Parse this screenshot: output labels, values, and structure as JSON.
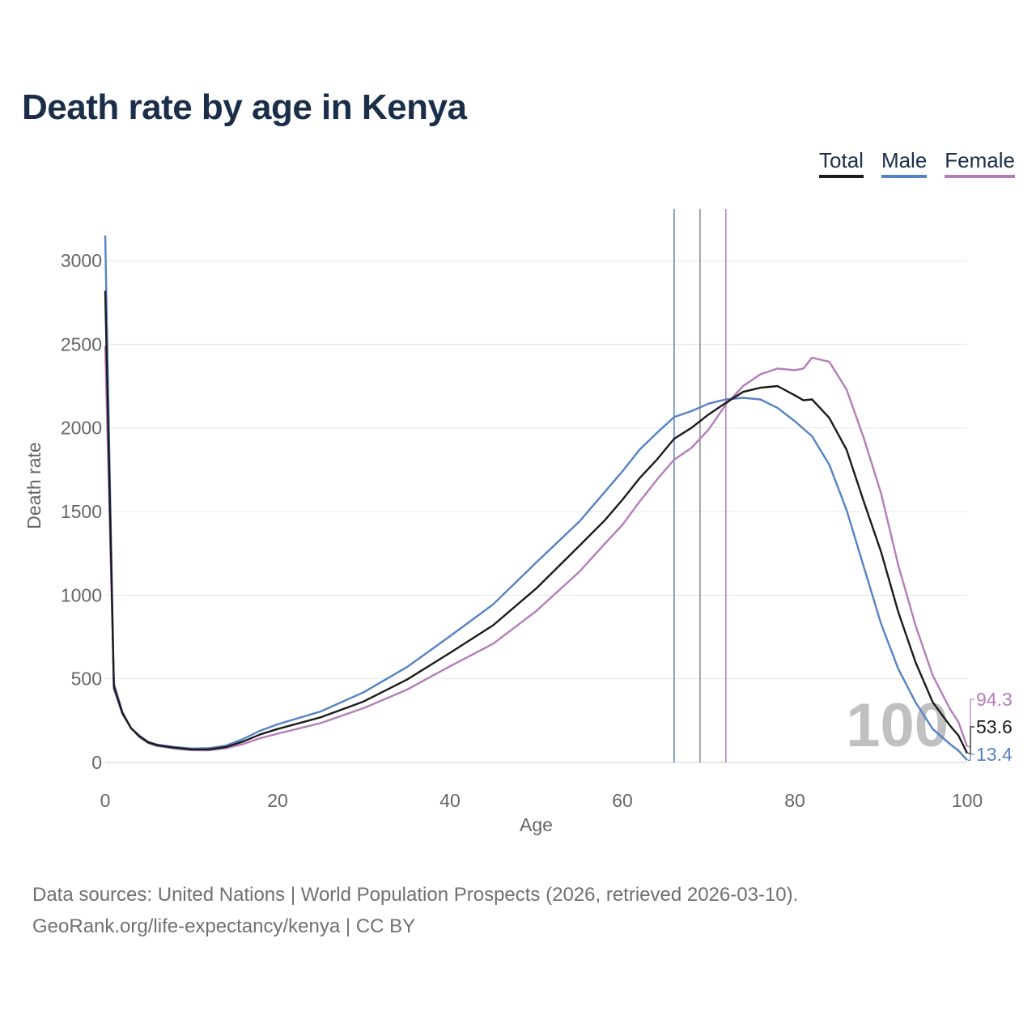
{
  "title": "Death rate by age in Kenya",
  "legend": {
    "total": "Total",
    "male": "Male",
    "female": "Female"
  },
  "colors": {
    "total": "#1b1b1b",
    "male": "#5582c4",
    "female": "#b57cba",
    "title": "#1a2e4a",
    "watermark": "#c0c0c0"
  },
  "footer": {
    "line1": "Data sources: United Nations | World Population Prospects (2026, retrieved 2026-03-10).",
    "line2": "GeoRank.org/life-expectancy/kenya | CC BY"
  },
  "chart_data": {
    "type": "line",
    "title": "Death rate by age in Kenya",
    "xlabel": "Age",
    "ylabel": "Death rate",
    "xlim": [
      0,
      100
    ],
    "ylim": [
      0,
      3300
    ],
    "x_ticks": [
      0,
      20,
      40,
      60,
      80,
      100
    ],
    "y_ticks": [
      0,
      500,
      1000,
      1500,
      2000,
      2500,
      3000
    ],
    "grid": true,
    "legend_position": "top-right",
    "highlight_label": "100",
    "reference_lines": [
      {
        "series": "male",
        "x": 66
      },
      {
        "series": "total",
        "x": 69
      },
      {
        "series": "female",
        "x": 72
      }
    ],
    "end_labels": {
      "female": "94.3",
      "total": "53.6",
      "male": "13.4"
    },
    "series": [
      {
        "name": "Total",
        "key": "total",
        "points": [
          [
            0,
            2820
          ],
          [
            1,
            455
          ],
          [
            2,
            295
          ],
          [
            3,
            205
          ],
          [
            4,
            155
          ],
          [
            5,
            120
          ],
          [
            6,
            103
          ],
          [
            8,
            88
          ],
          [
            10,
            78
          ],
          [
            12,
            78
          ],
          [
            14,
            92
          ],
          [
            16,
            125
          ],
          [
            18,
            168
          ],
          [
            20,
            200
          ],
          [
            25,
            270
          ],
          [
            30,
            365
          ],
          [
            35,
            495
          ],
          [
            40,
            655
          ],
          [
            45,
            820
          ],
          [
            50,
            1040
          ],
          [
            55,
            1295
          ],
          [
            58,
            1450
          ],
          [
            60,
            1570
          ],
          [
            62,
            1700
          ],
          [
            64,
            1810
          ],
          [
            66,
            1935
          ],
          [
            68,
            2000
          ],
          [
            70,
            2080
          ],
          [
            72,
            2150
          ],
          [
            74,
            2215
          ],
          [
            76,
            2240
          ],
          [
            78,
            2250
          ],
          [
            80,
            2195
          ],
          [
            81,
            2165
          ],
          [
            82,
            2170
          ],
          [
            84,
            2060
          ],
          [
            86,
            1870
          ],
          [
            88,
            1560
          ],
          [
            90,
            1260
          ],
          [
            92,
            900
          ],
          [
            94,
            600
          ],
          [
            96,
            360
          ],
          [
            98,
            220
          ],
          [
            99,
            160
          ],
          [
            100,
            54
          ]
        ]
      },
      {
        "name": "Male",
        "key": "male",
        "points": [
          [
            0,
            3150
          ],
          [
            1,
            440
          ],
          [
            2,
            290
          ],
          [
            3,
            205
          ],
          [
            4,
            158
          ],
          [
            5,
            123
          ],
          [
            6,
            107
          ],
          [
            8,
            93
          ],
          [
            10,
            83
          ],
          [
            12,
            85
          ],
          [
            14,
            100
          ],
          [
            16,
            140
          ],
          [
            18,
            190
          ],
          [
            20,
            228
          ],
          [
            25,
            305
          ],
          [
            30,
            420
          ],
          [
            35,
            570
          ],
          [
            40,
            755
          ],
          [
            45,
            945
          ],
          [
            50,
            1195
          ],
          [
            55,
            1440
          ],
          [
            58,
            1620
          ],
          [
            60,
            1740
          ],
          [
            62,
            1870
          ],
          [
            64,
            1970
          ],
          [
            66,
            2065
          ],
          [
            68,
            2100
          ],
          [
            70,
            2145
          ],
          [
            72,
            2170
          ],
          [
            74,
            2180
          ],
          [
            76,
            2170
          ],
          [
            78,
            2120
          ],
          [
            80,
            2040
          ],
          [
            82,
            1950
          ],
          [
            84,
            1780
          ],
          [
            86,
            1510
          ],
          [
            88,
            1170
          ],
          [
            90,
            830
          ],
          [
            92,
            560
          ],
          [
            94,
            360
          ],
          [
            96,
            200
          ],
          [
            98,
            110
          ],
          [
            99,
            70
          ],
          [
            100,
            13
          ]
        ]
      },
      {
        "name": "Female",
        "key": "female",
        "points": [
          [
            0,
            2490
          ],
          [
            1,
            475
          ],
          [
            2,
            300
          ],
          [
            3,
            205
          ],
          [
            4,
            150
          ],
          [
            5,
            115
          ],
          [
            6,
            98
          ],
          [
            8,
            83
          ],
          [
            10,
            73
          ],
          [
            12,
            72
          ],
          [
            14,
            85
          ],
          [
            16,
            110
          ],
          [
            18,
            145
          ],
          [
            20,
            172
          ],
          [
            25,
            235
          ],
          [
            30,
            325
          ],
          [
            35,
            435
          ],
          [
            40,
            575
          ],
          [
            45,
            710
          ],
          [
            50,
            905
          ],
          [
            55,
            1140
          ],
          [
            58,
            1310
          ],
          [
            60,
            1420
          ],
          [
            62,
            1560
          ],
          [
            64,
            1690
          ],
          [
            66,
            1810
          ],
          [
            68,
            1880
          ],
          [
            70,
            1990
          ],
          [
            72,
            2140
          ],
          [
            74,
            2250
          ],
          [
            76,
            2320
          ],
          [
            78,
            2355
          ],
          [
            80,
            2345
          ],
          [
            81,
            2355
          ],
          [
            82,
            2420
          ],
          [
            84,
            2395
          ],
          [
            86,
            2230
          ],
          [
            88,
            1940
          ],
          [
            90,
            1610
          ],
          [
            92,
            1180
          ],
          [
            94,
            820
          ],
          [
            96,
            520
          ],
          [
            98,
            320
          ],
          [
            99,
            240
          ],
          [
            100,
            94
          ]
        ]
      }
    ]
  }
}
